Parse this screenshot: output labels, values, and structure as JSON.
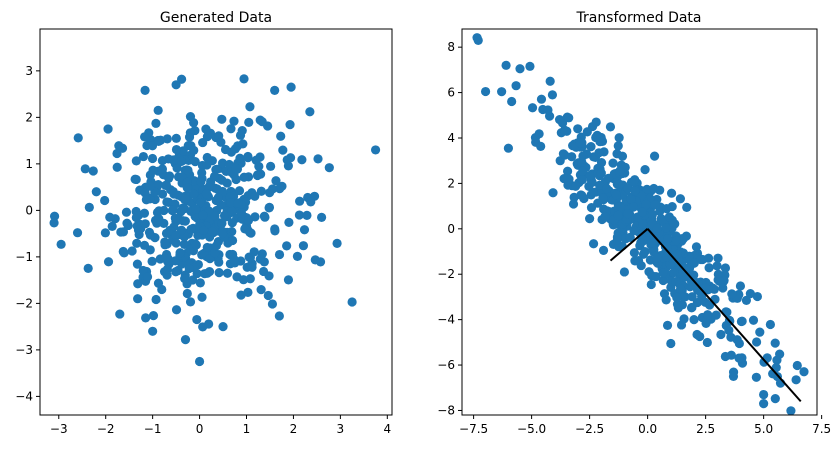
{
  "chart_data": [
    {
      "type": "scatter",
      "title": "Generated Data",
      "xlabel": "",
      "ylabel": "",
      "xlim": [
        -3.4,
        4.1
      ],
      "ylim": [
        -4.4,
        3.9
      ],
      "xticks": [
        -3,
        -2,
        -1,
        0,
        1,
        2,
        3,
        4
      ],
      "yticks": [
        -4,
        -3,
        -2,
        -1,
        0,
        1,
        2,
        3
      ],
      "xtick_labels": [
        "−3",
        "−2",
        "−1",
        "0",
        "1",
        "2",
        "3",
        "4"
      ],
      "ytick_labels": [
        "−4",
        "−3",
        "−2",
        "−1",
        "0",
        "1",
        "2",
        "3"
      ],
      "grid": false,
      "color": "#1f77b4",
      "point_count": 500,
      "distribution": {
        "mean": [
          0,
          0
        ],
        "std": [
          1,
          1
        ],
        "correlation": 0
      },
      "notable_points": [
        [
          3.75,
          1.3
        ],
        [
          3.25,
          -1.97
        ],
        [
          2.93,
          -0.71
        ],
        [
          2.6,
          -0.15
        ],
        [
          2.35,
          2.12
        ],
        [
          1.95,
          2.65
        ],
        [
          1.6,
          2.58
        ],
        [
          -0.5,
          2.7
        ],
        [
          0.0,
          -3.25
        ],
        [
          -0.3,
          -2.78
        ],
        [
          -1.0,
          -2.6
        ],
        [
          -1.7,
          -2.23
        ],
        [
          -3.1,
          -0.27
        ],
        [
          -2.95,
          -0.73
        ],
        [
          -2.6,
          -0.48
        ],
        [
          -1.95,
          1.75
        ],
        [
          -2.2,
          0.4
        ],
        [
          1.7,
          -2.27
        ],
        [
          0.5,
          -2.5
        ]
      ]
    },
    {
      "type": "scatter",
      "title": "Transformed Data",
      "xlabel": "",
      "ylabel": "",
      "xlim": [
        -8.0,
        7.3
      ],
      "ylim": [
        -8.2,
        8.8
      ],
      "xticks": [
        -7.5,
        -5.0,
        -2.5,
        0.0,
        2.5,
        5.0,
        7.5
      ],
      "yticks": [
        -8,
        -6,
        -4,
        -2,
        0,
        2,
        4,
        6,
        8
      ],
      "xtick_labels": [
        "−7.5",
        "−5.0",
        "−2.5",
        "0.0",
        "2.5",
        "5.0",
        "7.5"
      ],
      "ytick_labels": [
        "−8",
        "−6",
        "−4",
        "−2",
        "0",
        "2",
        "4",
        "6",
        "8"
      ],
      "grid": false,
      "color": "#1f77b4",
      "point_count": 500,
      "transform": {
        "ux": [
          2.4,
          -2.7
        ],
        "uy": [
          -0.5,
          -0.6
        ]
      },
      "notable_points": [
        [
          -7.3,
          8.3
        ],
        [
          -6.1,
          7.2
        ],
        [
          -6.0,
          3.55
        ],
        [
          -5.5,
          7.05
        ],
        [
          -4.2,
          6.5
        ],
        [
          1.0,
          -5.05
        ],
        [
          3.7,
          -6.5
        ],
        [
          5.0,
          -7.3
        ],
        [
          5.0,
          -7.7
        ],
        [
          6.4,
          -6.65
        ],
        [
          -2.5,
          0.45
        ],
        [
          -1.9,
          -0.95
        ],
        [
          -1.0,
          -1.9
        ],
        [
          0.3,
          3.2
        ],
        [
          2.0,
          -4.0
        ]
      ],
      "vectors": [
        {
          "from": [
            0,
            0
          ],
          "to": [
            6.6,
            -7.6
          ]
        },
        {
          "from": [
            0,
            0
          ],
          "to": [
            -1.6,
            -1.4
          ]
        }
      ]
    }
  ]
}
